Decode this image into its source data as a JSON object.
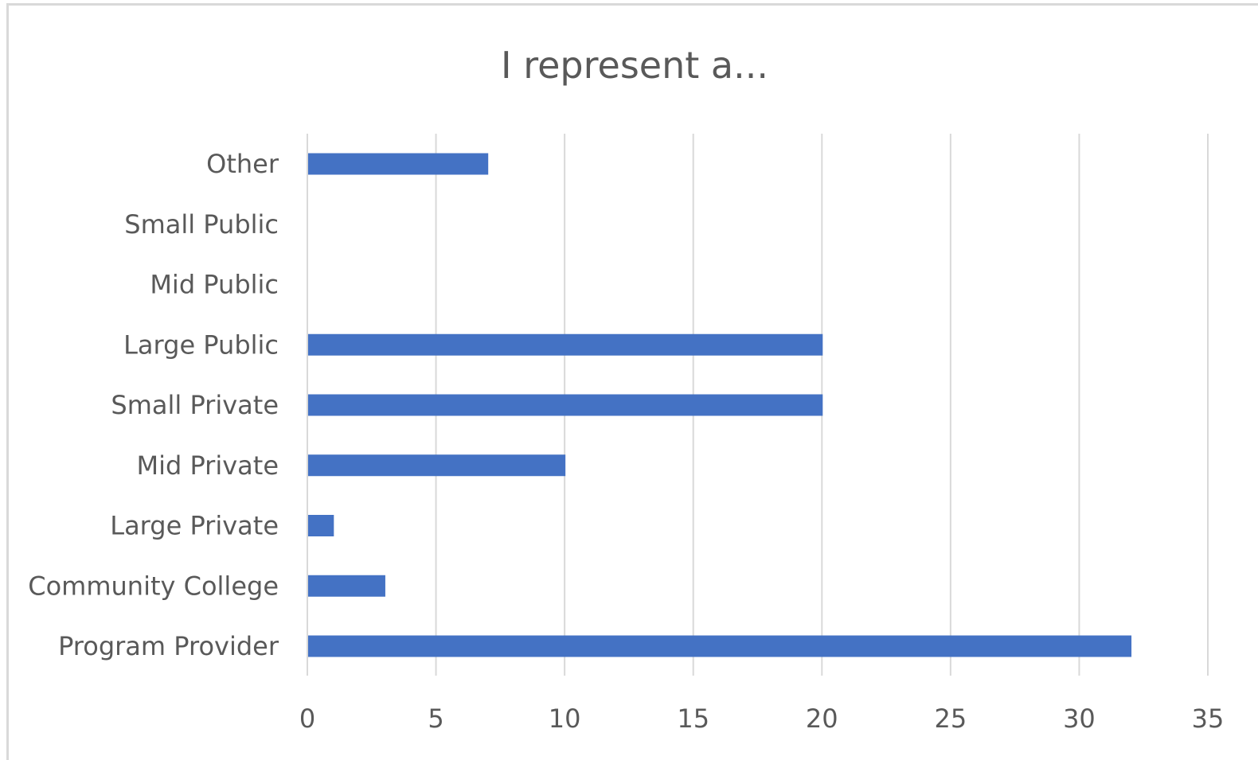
{
  "chart_data": {
    "type": "bar",
    "orientation": "horizontal",
    "title": "I represent a...",
    "xlabel": "",
    "ylabel": "",
    "categories": [
      "Program Provider",
      "Community College",
      "Large Private",
      "Mid Private",
      "Small Private",
      "Large Public",
      "Mid Public",
      "Small Public",
      "Other"
    ],
    "values": [
      32,
      3,
      1,
      10,
      20,
      20,
      0,
      0,
      7
    ],
    "xlim": [
      0,
      35
    ],
    "x_ticks": [
      "0",
      "5",
      "10",
      "15",
      "20",
      "25",
      "30",
      "35"
    ],
    "grid": "vertical",
    "legend": "none",
    "colors": {
      "bar": "#4472c4",
      "grid": "#d9d9d9",
      "text": "#595959",
      "frame": "#d9d9d9"
    }
  }
}
